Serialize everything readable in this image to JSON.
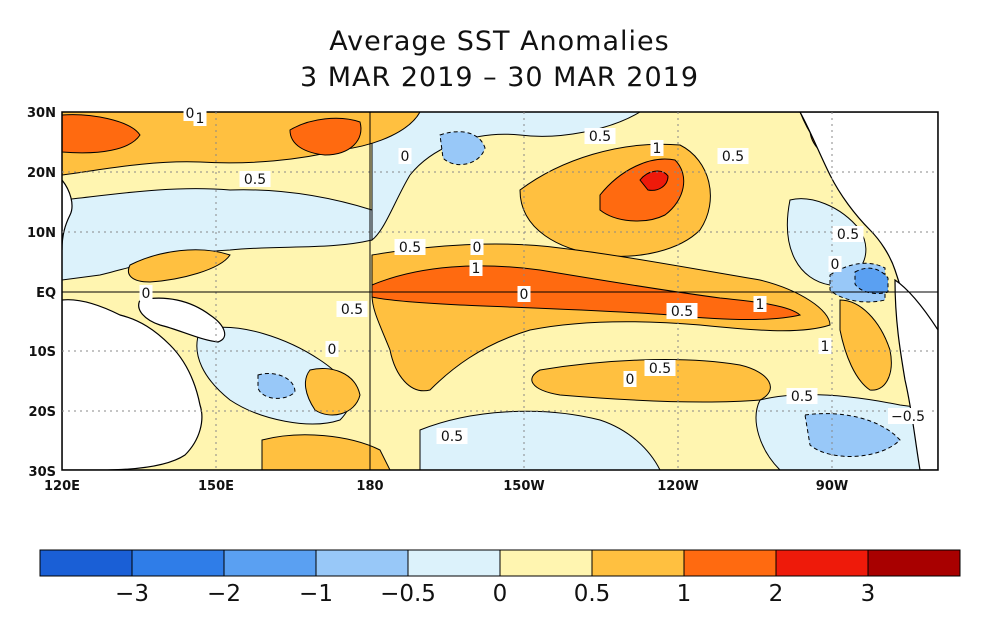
{
  "title_line1": "Average SST Anomalies",
  "title_line2": "3 MAR 2019 – 30 MAR 2019",
  "lat_labels": [
    "30N",
    "20N",
    "10N",
    "EQ",
    "10S",
    "20S",
    "30S"
  ],
  "lon_labels": [
    "120E",
    "150E",
    "180",
    "150W",
    "120W",
    "90W"
  ],
  "colorbar": {
    "colors": [
      "#1a5fd6",
      "#2f7de8",
      "#5aa0f2",
      "#98c8f8",
      "#dcf2fb",
      "#fff5b0",
      "#ffc040",
      "#ff6a10",
      "#ee1a0a",
      "#a80000"
    ],
    "labels": [
      "−3",
      "−2",
      "−1",
      "−0.5",
      "0",
      "0.5",
      "1",
      "2",
      "3"
    ]
  },
  "contour_labels": [
    "0.5",
    "1",
    "0.5",
    "0",
    "0.5",
    "0.5",
    "0",
    "1",
    "0",
    "0.5",
    "1",
    "0.5",
    "0.5",
    "0",
    "1",
    "0.5",
    "0",
    "0.5",
    "0.5",
    "0",
    "0",
    "−0.5",
    "0",
    "1"
  ]
}
